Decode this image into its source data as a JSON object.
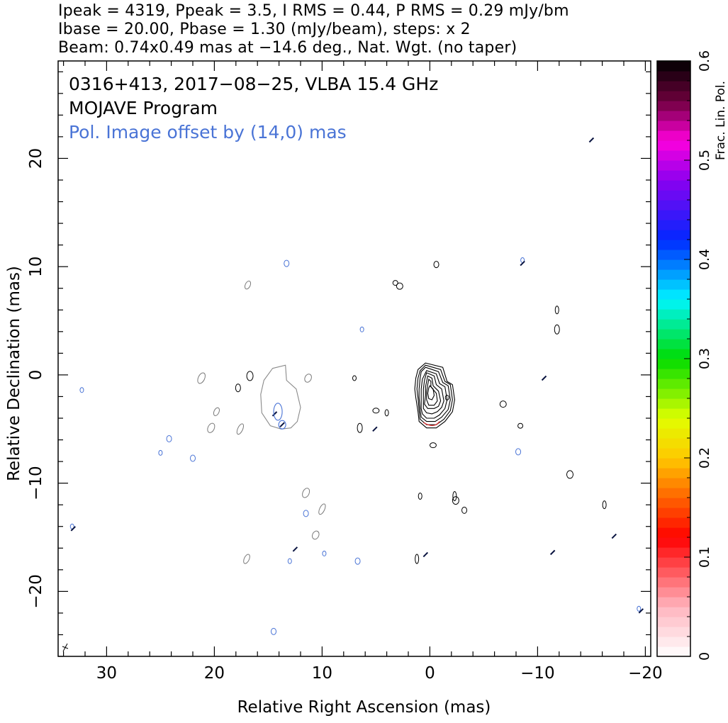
{
  "header": {
    "line1": "Ipeak = 4319, Ppeak = 3.5, I RMS = 0.44, P RMS = 0.29 mJy/bm",
    "line2": "Ibase = 20.00, Pbase = 1.30 (mJy/beam), steps: x 2",
    "line3": "Beam: 0.74x0.49 mas at −14.6 deg., Nat. Wgt. (no taper)"
  },
  "annotations": {
    "source": "0316+413, 2017−08−25, VLBA 15.4 GHz",
    "program": "MOJAVE Program",
    "pol_offset": "Pol. Image offset by (14,0) mas",
    "pol_color": "#4a74d6"
  },
  "chart_data": {
    "type": "contour",
    "xlabel": "Relative Right Ascension (mas)",
    "ylabel": "Relative Declination (mas)",
    "xlim": [
      34.5,
      -20.5
    ],
    "ylim": [
      -26,
      29
    ],
    "x_ticks": [
      {
        "value": 30,
        "label": "30"
      },
      {
        "value": 20,
        "label": "20"
      },
      {
        "value": 10,
        "label": "10"
      },
      {
        "value": 0,
        "label": "0"
      },
      {
        "value": -10,
        "label": "−10"
      },
      {
        "value": -20,
        "label": "−20"
      }
    ],
    "y_ticks": [
      {
        "value": -20,
        "label": "−20"
      },
      {
        "value": -10,
        "label": "−10"
      },
      {
        "value": 0,
        "label": "0"
      },
      {
        "value": 10,
        "label": "10"
      },
      {
        "value": 20,
        "label": "20"
      }
    ],
    "colorbar": {
      "label": "Frac. Lin. Pol.",
      "range": [
        0,
        0.6
      ],
      "ticks": [
        {
          "value": 0,
          "label": "0"
        },
        {
          "value": 0.1,
          "label": "0.1"
        },
        {
          "value": 0.2,
          "label": "0.2"
        },
        {
          "value": 0.3,
          "label": "0.3"
        },
        {
          "value": 0.4,
          "label": "0.4"
        },
        {
          "value": 0.5,
          "label": "0.5"
        },
        {
          "value": 0.6,
          "label": "0.6"
        }
      ]
    },
    "core": {
      "center": [
        0.4,
        -2.2
      ],
      "contours": [
        [
          [
            0.4,
            1.1
          ],
          [
            -1.2,
            0.7
          ],
          [
            -1.6,
            -0.6
          ],
          [
            -2.1,
            -0.9
          ],
          [
            -2.3,
            -2.3
          ],
          [
            -2.1,
            -3.4
          ],
          [
            -1.4,
            -4.3
          ],
          [
            -0.6,
            -4.9
          ],
          [
            0.3,
            -4.9
          ],
          [
            1.0,
            -4.3
          ],
          [
            1.1,
            -3.4
          ],
          [
            1.3,
            -2.1
          ],
          [
            1.4,
            -1.3
          ],
          [
            1.3,
            -0.3
          ],
          [
            1.1,
            0.5
          ]
        ],
        [
          [
            0.4,
            0.9
          ],
          [
            -1.0,
            0.5
          ],
          [
            -1.4,
            -0.6
          ],
          [
            -1.9,
            -0.9
          ],
          [
            -2.1,
            -2.3
          ],
          [
            -1.9,
            -3.3
          ],
          [
            -1.3,
            -4.1
          ],
          [
            -0.6,
            -4.6
          ],
          [
            0.3,
            -4.6
          ],
          [
            0.9,
            -4.1
          ],
          [
            1.0,
            -3.3
          ],
          [
            1.1,
            -2.1
          ],
          [
            1.2,
            -1.3
          ],
          [
            1.1,
            -0.3
          ],
          [
            0.9,
            0.4
          ]
        ],
        [
          [
            0.4,
            0.7
          ],
          [
            -0.8,
            0.3
          ],
          [
            -1.2,
            -0.7
          ],
          [
            -1.7,
            -1.0
          ],
          [
            -1.9,
            -2.3
          ],
          [
            -1.7,
            -3.2
          ],
          [
            -1.1,
            -3.9
          ],
          [
            -0.5,
            -4.3
          ],
          [
            0.3,
            -4.3
          ],
          [
            0.8,
            -3.9
          ],
          [
            0.9,
            -3.2
          ],
          [
            1.0,
            -2.1
          ],
          [
            1.0,
            -1.3
          ],
          [
            0.9,
            -0.3
          ],
          [
            0.8,
            0.3
          ]
        ],
        [
          [
            0.3,
            0.4
          ],
          [
            -0.6,
            0.1
          ],
          [
            -0.9,
            -0.8
          ],
          [
            -1.4,
            -1.1
          ],
          [
            -1.6,
            -2.3
          ],
          [
            -1.4,
            -3.1
          ],
          [
            -0.9,
            -3.7
          ],
          [
            -0.4,
            -4.0
          ],
          [
            0.3,
            -4.0
          ],
          [
            0.7,
            -3.6
          ],
          [
            0.8,
            -3.1
          ],
          [
            0.8,
            -2.1
          ],
          [
            0.8,
            -1.3
          ],
          [
            0.7,
            -0.4
          ]
        ],
        [
          [
            0.3,
            0.2
          ],
          [
            -0.4,
            -0.1
          ],
          [
            -0.6,
            -0.9
          ],
          [
            -1.1,
            -1.3
          ],
          [
            -1.3,
            -2.4
          ],
          [
            -1.1,
            -3.0
          ],
          [
            -0.7,
            -3.4
          ],
          [
            -0.2,
            -3.6
          ],
          [
            0.3,
            -3.5
          ],
          [
            0.6,
            -3.1
          ],
          [
            0.6,
            -2.2
          ],
          [
            0.6,
            -1.3
          ],
          [
            0.5,
            -0.5
          ]
        ],
        [
          [
            0.2,
            -0.1
          ],
          [
            -0.2,
            -0.3
          ],
          [
            -0.3,
            -1.0
          ],
          [
            -0.8,
            -1.5
          ],
          [
            -1.0,
            -2.4
          ],
          [
            -0.8,
            -2.9
          ],
          [
            -0.4,
            -3.1
          ],
          [
            0.2,
            -3.1
          ],
          [
            0.5,
            -2.7
          ],
          [
            0.4,
            -1.9
          ],
          [
            0.4,
            -1.1
          ]
        ],
        [
          [
            0.1,
            -0.4
          ],
          [
            -0.1,
            -0.6
          ],
          [
            -0.1,
            -1.1
          ],
          [
            -0.6,
            -1.7
          ],
          [
            -0.7,
            -2.4
          ],
          [
            -0.4,
            -2.8
          ],
          [
            0.1,
            -2.8
          ],
          [
            0.3,
            -2.3
          ],
          [
            0.3,
            -1.6
          ],
          [
            0.2,
            -0.9
          ]
        ],
        [
          [
            0.0,
            -1.0
          ],
          [
            -0.3,
            -1.3
          ],
          [
            -0.4,
            -1.9
          ],
          [
            -0.2,
            -2.3
          ],
          [
            0.1,
            -2.2
          ],
          [
            0.2,
            -1.7
          ],
          [
            0.1,
            -1.2
          ]
        ]
      ]
    },
    "pol_region": [
      [
        14.6,
        0.6
      ],
      [
        13.4,
        0.9
      ],
      [
        13.3,
        -0.5
      ],
      [
        12.4,
        -1.3
      ],
      [
        12.0,
        -3.0
      ],
      [
        12.3,
        -4.3
      ],
      [
        12.9,
        -4.9
      ],
      [
        13.8,
        -5.0
      ],
      [
        14.8,
        -4.7
      ],
      [
        15.6,
        -3.5
      ],
      [
        15.7,
        -1.8
      ],
      [
        15.4,
        -0.5
      ]
    ],
    "noise_islands": {
      "black": [
        [
          -1.6,
          -2.1
        ],
        [
          -3.2,
          -12.5
        ],
        [
          -2.4,
          -11.6
        ],
        [
          -2.3,
          -11.2
        ],
        [
          3.2,
          8.5
        ],
        [
          2.8,
          8.2
        ],
        [
          -16.2,
          -12
        ],
        [
          6.5,
          -4.9
        ],
        [
          5.0,
          -3.3
        ],
        [
          4.0,
          -3.5
        ],
        [
          17.8,
          -1.2
        ],
        [
          16.7,
          -0.1
        ],
        [
          7.0,
          -0.3
        ],
        [
          -0.6,
          10.2
        ],
        [
          -13.0,
          -9.2
        ],
        [
          1.2,
          -17.0
        ],
        [
          -8.4,
          -4.7
        ],
        [
          -6.8,
          -2.7
        ],
        [
          -11.8,
          6.0
        ],
        [
          -11.8,
          4.2
        ],
        [
          -0.3,
          -6.5
        ],
        [
          0.9,
          -11.2
        ]
      ],
      "grey": [
        [
          16.9,
          8.3
        ],
        [
          11.5,
          -10.9
        ],
        [
          10.0,
          -12.4
        ],
        [
          10.6,
          -14.8
        ],
        [
          17.0,
          -17.0
        ],
        [
          21.2,
          -0.3
        ],
        [
          19.8,
          -3.4
        ],
        [
          20.3,
          -4.9
        ],
        [
          17.6,
          -5.0
        ],
        [
          11.3,
          -0.3
        ]
      ],
      "blue": [
        [
          32.3,
          -1.4
        ],
        [
          13.3,
          10.3
        ],
        [
          6.3,
          4.2
        ],
        [
          24.2,
          -5.9
        ],
        [
          25.0,
          -7.2
        ],
        [
          22.0,
          -7.7
        ],
        [
          -8.6,
          10.6
        ],
        [
          -8.2,
          -7.1
        ],
        [
          9.8,
          -16.5
        ],
        [
          6.7,
          -17.2
        ],
        [
          -19.4,
          -21.6
        ],
        [
          14.5,
          -23.7
        ],
        [
          33.2,
          -14.0
        ],
        [
          11.5,
          -12.8
        ],
        [
          13.0,
          -17.2
        ]
      ],
      "dashes": [
        [
          -15.0,
          21.7
        ],
        [
          -8.6,
          10.3
        ],
        [
          12.5,
          -16.1
        ],
        [
          33.1,
          -14.2
        ],
        [
          -19.6,
          -21.8
        ],
        [
          14.4,
          -3.6
        ],
        [
          13.7,
          -4.6
        ],
        [
          -11.4,
          -16.4
        ],
        [
          -17.1,
          -14.9
        ],
        [
          0.4,
          -16.6
        ],
        [
          5.1,
          -5.0
        ],
        [
          -10.6,
          -0.3
        ]
      ]
    }
  }
}
